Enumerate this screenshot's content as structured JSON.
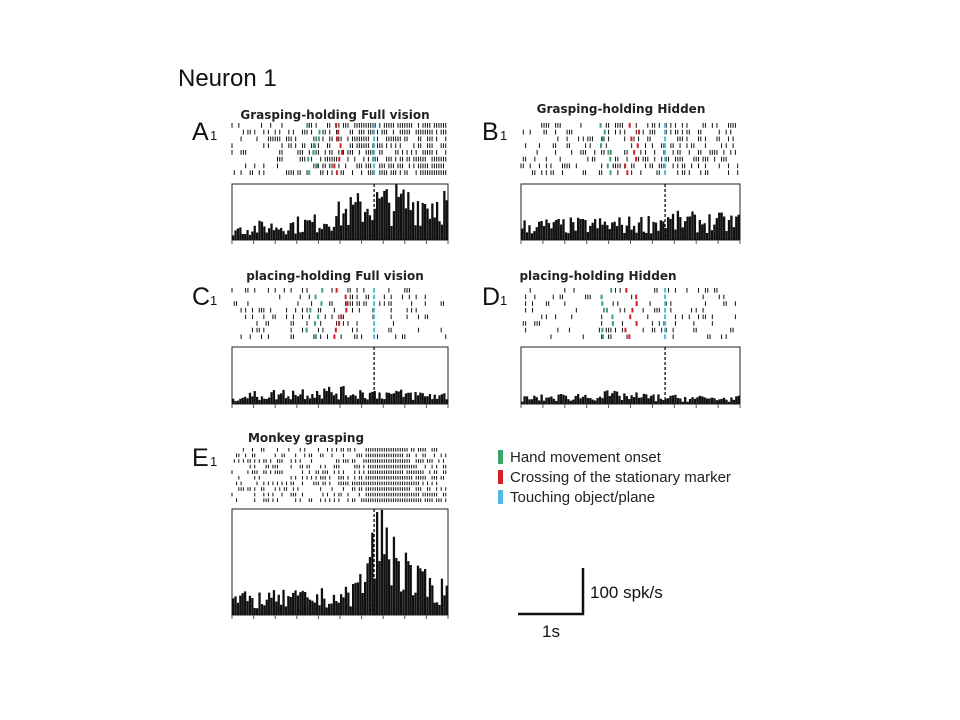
{
  "figure": {
    "title": "Neuron 1",
    "legend": [
      {
        "label": "Hand movement onset",
        "color": "#3aa66a"
      },
      {
        "label": "Crossing of the stationary marker",
        "color": "#d4202a"
      },
      {
        "label": "Touching object/plane",
        "color": "#52b8e8"
      }
    ],
    "scalebar": {
      "y_label": "100 spk/s",
      "x_label": "1s",
      "y_value_spk_s": 100,
      "x_value_s": 1
    }
  },
  "chart_data": [
    {
      "type": "bar",
      "panel": "A",
      "label": "A",
      "sub": "1",
      "title": "Grasping-holding Full vision",
      "alignment": "touching object/plane (dashed line)",
      "n_trials": 8,
      "x_range_s": [
        -2.5,
        1.3
      ],
      "baseline_spk_s": 15,
      "peak_spk_s": 50,
      "profile": [
        [
          -2.5,
          12
        ],
        [
          -1.0,
          20
        ],
        [
          -0.5,
          32
        ],
        [
          0,
          42
        ],
        [
          1.3,
          44
        ]
      ]
    },
    {
      "type": "bar",
      "panel": "B",
      "label": "B",
      "sub": "1",
      "title": "Grasping-holding Hidden",
      "alignment": "touching object/plane (dashed line)",
      "n_trials": 8,
      "x_range_s": [
        -2.5,
        1.3
      ],
      "baseline_spk_s": 18,
      "peak_spk_s": 30,
      "profile": [
        [
          -2.5,
          16
        ],
        [
          -0.5,
          18
        ],
        [
          0,
          22
        ],
        [
          1.3,
          20
        ]
      ]
    },
    {
      "type": "bar",
      "panel": "C",
      "label": "C",
      "sub": "1",
      "title": "placing-holding Full vision",
      "alignment": "touching object/plane (dashed line)",
      "n_trials": 8,
      "x_range_s": [
        -2.5,
        1.3
      ],
      "baseline_spk_s": 8,
      "peak_spk_s": 20,
      "profile": [
        [
          -2.5,
          8
        ],
        [
          -1.0,
          14
        ],
        [
          0,
          12
        ],
        [
          1.3,
          9
        ]
      ]
    },
    {
      "type": "bar",
      "panel": "D",
      "label": "D",
      "sub": "1",
      "title": "placing-holding Hidden",
      "alignment": "touching object/plane (dashed line)",
      "n_trials": 8,
      "x_range_s": [
        -2.5,
        1.3
      ],
      "baseline_spk_s": 6,
      "peak_spk_s": 15,
      "profile": [
        [
          -2.5,
          6
        ],
        [
          -1.0,
          10
        ],
        [
          0,
          7
        ],
        [
          1.3,
          6
        ]
      ]
    },
    {
      "type": "bar",
      "panel": "E",
      "label": "E",
      "sub": "1",
      "title": "Monkey grasping",
      "alignment": "grasping onset (dashed line)",
      "n_trials": 10,
      "x_range_s": [
        -2.5,
        1.3
      ],
      "baseline_spk_s": 20,
      "peak_spk_s": 110,
      "profile": [
        [
          -2.5,
          18
        ],
        [
          -0.5,
          22
        ],
        [
          -0.2,
          40
        ],
        [
          0.1,
          100
        ],
        [
          0.3,
          80
        ],
        [
          0.7,
          40
        ],
        [
          1.3,
          28
        ]
      ]
    }
  ]
}
